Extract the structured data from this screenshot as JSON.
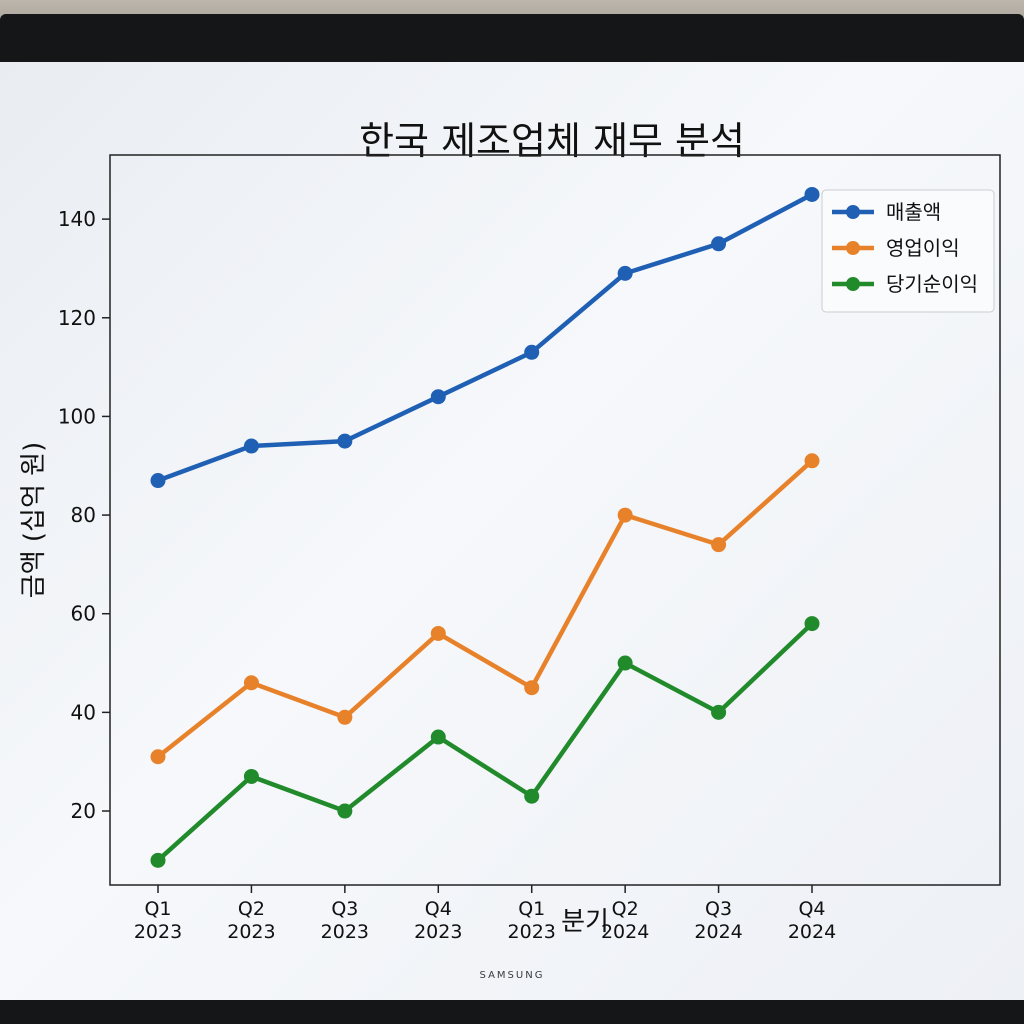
{
  "monitor": {
    "brand": "SAMSUNG"
  },
  "chart_data": {
    "type": "line",
    "title": "한국 제조업체 재무 분석",
    "xlabel": "분기",
    "ylabel": "금액 (십억 원)",
    "categories": [
      "Q1\n2023",
      "Q2\n2023",
      "Q3\n2023",
      "Q4\n2023",
      "Q1\n2023",
      "Q2\n2024",
      "Q3\n2024",
      "Q4\n2024"
    ],
    "ylim": [
      5,
      153
    ],
    "yticks": [
      20,
      40,
      60,
      80,
      100,
      120,
      140
    ],
    "grid": false,
    "legend_position": "top-right",
    "series": [
      {
        "name": "매출액",
        "color": "#1f5fb4",
        "values": [
          87,
          94,
          95,
          104,
          113,
          129,
          135,
          145
        ]
      },
      {
        "name": "영업이익",
        "color": "#e8822a",
        "values": [
          31,
          46,
          39,
          56,
          45,
          80,
          74,
          91
        ]
      },
      {
        "name": "당기순이익",
        "color": "#218a2b",
        "values": [
          10,
          27,
          20,
          35,
          23,
          50,
          40,
          58
        ]
      }
    ]
  }
}
